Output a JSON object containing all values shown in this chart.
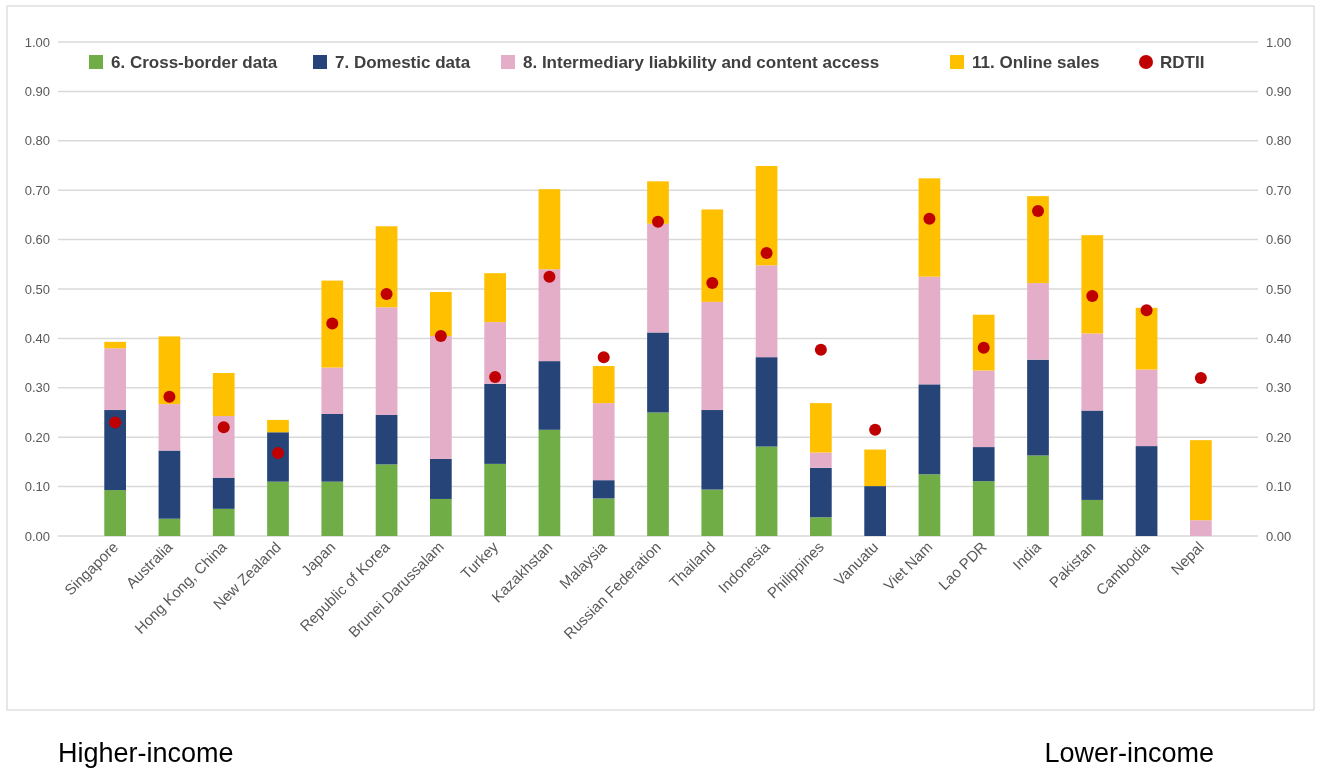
{
  "chart_data": {
    "type": "bar",
    "stacked": true,
    "categories": [
      "Singapore",
      "Australia",
      "Hong Kong, China",
      "New Zealand",
      "Japan",
      "Republic of Korea",
      "Brunei Darussalam",
      "Turkey",
      "Kazakhstan",
      "Malaysia",
      "Russian Federation",
      "Thailand",
      "Indonesia",
      "Philippines",
      "Vanuatu",
      "Viet Nam",
      "Lao PDR",
      "India",
      "Pakistan",
      "Cambodia",
      "Nepal"
    ],
    "series": [
      {
        "name": "6. Cross-border data",
        "color": "#70ad47",
        "values": [
          0.093,
          0.035,
          0.055,
          0.11,
          0.11,
          0.145,
          0.075,
          0.146,
          0.215,
          0.076,
          0.25,
          0.094,
          0.181,
          0.038,
          0,
          0.125,
          0.111,
          0.163,
          0.073,
          0,
          0
        ]
      },
      {
        "name": "7. Domestic data",
        "color": "#264478",
        "values": [
          0.162,
          0.138,
          0.063,
          0.1,
          0.137,
          0.1,
          0.081,
          0.162,
          0.139,
          0.037,
          0.162,
          0.161,
          0.181,
          0.1,
          0.101,
          0.182,
          0.069,
          0.194,
          0.181,
          0.182,
          0
        ]
      },
      {
        "name": "8. Intermediary liabkility and content access",
        "color": "#e4aec9",
        "values": [
          0.125,
          0.094,
          0.125,
          0,
          0.094,
          0.218,
          0.249,
          0.125,
          0.186,
          0.156,
          0.22,
          0.219,
          0.186,
          0.031,
          0,
          0.218,
          0.155,
          0.155,
          0.156,
          0.155,
          0.032
        ]
      },
      {
        "name": "11. Online sales",
        "color": "#ffc000",
        "values": [
          0.013,
          0.137,
          0.087,
          0.025,
          0.176,
          0.164,
          0.089,
          0.099,
          0.162,
          0.075,
          0.086,
          0.187,
          0.201,
          0.1,
          0.074,
          0.199,
          0.113,
          0.176,
          0.199,
          0.125,
          0.162
        ]
      },
      {
        "name": "RDTII",
        "type": "scatter",
        "color": "#c00000",
        "x": [
          "Singapore",
          "Australia",
          "Hong Kong, China",
          "New Zealand",
          "Japan",
          "Republic of Korea",
          "Brunei Darussalam",
          "Turkey",
          "Kazakhstan",
          "Malaysia",
          "Russian Federation",
          "Thailand",
          "Indonesia",
          "Philippines",
          "Vanuatu",
          "Viet Nam",
          "Lao PDR",
          "India",
          "Pakistan",
          "Cambodia",
          "Nepal"
        ],
        "values": [
          0.23,
          0.282,
          0.22,
          0.168,
          0.43,
          0.49,
          0.405,
          0.322,
          0.525,
          0.362,
          0.636,
          0.512,
          0.573,
          0.377,
          0.215,
          0.642,
          0.381,
          0.658,
          0.486,
          0.457,
          0.32
        ]
      }
    ],
    "ylim": [
      0,
      1
    ],
    "yticks": [
      {
        "value": 0,
        "label": "0.00"
      },
      {
        "value": 0.1,
        "label": "0.10"
      },
      {
        "value": 0.2,
        "label": "0.20"
      },
      {
        "value": 0.3,
        "label": "0.30"
      },
      {
        "value": 0.4,
        "label": "0.40"
      },
      {
        "value": 0.5,
        "label": "0.50"
      },
      {
        "value": 0.6,
        "label": "0.60"
      },
      {
        "value": 0.7,
        "label": "0.70"
      },
      {
        "value": 0.8,
        "label": "0.80"
      },
      {
        "value": 0.9,
        "label": "0.90"
      },
      {
        "value": 1,
        "label": "1.00"
      }
    ],
    "y2lim": [
      0,
      1
    ],
    "y2ticks": [
      {
        "value": 0,
        "label": "0.00"
      },
      {
        "value": 0.1,
        "label": "0.10"
      },
      {
        "value": 0.2,
        "label": "0.20"
      },
      {
        "value": 0.3,
        "label": "0.30"
      },
      {
        "value": 0.4,
        "label": "0.40"
      },
      {
        "value": 0.5,
        "label": "0.50"
      },
      {
        "value": 0.6,
        "label": "0.60"
      },
      {
        "value": 0.7,
        "label": "0.70"
      },
      {
        "value": 0.8,
        "label": "0.80"
      },
      {
        "value": 0.9,
        "label": "0.90"
      },
      {
        "value": 1,
        "label": "1.00"
      }
    ],
    "grid": "y",
    "legend": "top",
    "marker": "circle",
    "annotations": [
      "Higher-income",
      "Lower-income"
    ]
  }
}
